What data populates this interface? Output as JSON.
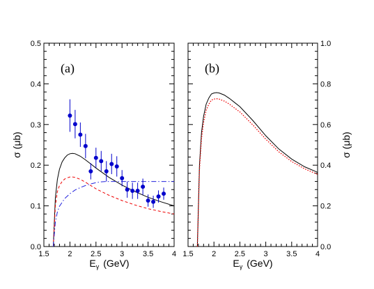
{
  "chart_data": [
    {
      "type": "line",
      "panel_label": "(a)",
      "xlabel": "E",
      "xlabel_sub": "γ",
      "xlabel_unit": "(GeV)",
      "ylabel": "σ   (μb)",
      "xlim": [
        1.5,
        4.0
      ],
      "ylim": [
        0.0,
        0.5
      ],
      "x_ticks": [
        "1.5",
        "2",
        "2.5",
        "3",
        "3.5",
        "4"
      ],
      "y_ticks": [
        "0.0",
        "0.1",
        "0.2",
        "0.3",
        "0.4",
        "0.5"
      ],
      "colors": {
        "solid": "#000000",
        "dashed": "#ee0000",
        "dashdot": "#2222dd",
        "data": "#0000cc"
      },
      "series": [
        {
          "style": "solid",
          "x": [
            1.68,
            1.72,
            1.76,
            1.8,
            1.85,
            1.9,
            1.95,
            2.0,
            2.05,
            2.1,
            2.2,
            2.3,
            2.4,
            2.5,
            2.75,
            3.0,
            3.25,
            3.5,
            3.75,
            4.0
          ],
          "y": [
            0.0,
            0.12,
            0.165,
            0.19,
            0.208,
            0.218,
            0.225,
            0.228,
            0.229,
            0.228,
            0.222,
            0.213,
            0.203,
            0.193,
            0.17,
            0.151,
            0.135,
            0.121,
            0.11,
            0.1
          ]
        },
        {
          "style": "dashed",
          "x": [
            1.68,
            1.72,
            1.76,
            1.8,
            1.85,
            1.9,
            1.95,
            2.0,
            2.05,
            2.1,
            2.2,
            2.3,
            2.4,
            2.5,
            2.75,
            3.0,
            3.25,
            3.5,
            3.75,
            4.0
          ],
          "y": [
            0.0,
            0.1,
            0.135,
            0.15,
            0.16,
            0.166,
            0.169,
            0.171,
            0.171,
            0.17,
            0.165,
            0.158,
            0.15,
            0.142,
            0.126,
            0.113,
            0.102,
            0.093,
            0.086,
            0.08
          ]
        },
        {
          "style": "dashdot",
          "x": [
            1.68,
            1.72,
            1.76,
            1.8,
            1.9,
            2.0,
            2.1,
            2.2,
            2.3,
            2.4,
            2.5,
            2.6,
            2.7,
            2.75,
            3.0,
            3.5,
            4.0
          ],
          "y": [
            0.0,
            0.06,
            0.085,
            0.099,
            0.118,
            0.13,
            0.139,
            0.145,
            0.15,
            0.154,
            0.157,
            0.159,
            0.16,
            0.16,
            0.16,
            0.16,
            0.16
          ]
        },
        {
          "style": "points",
          "x": [
            2.0,
            2.1,
            2.2,
            2.3,
            2.4,
            2.5,
            2.6,
            2.7,
            2.8,
            2.9,
            3.0,
            3.1,
            3.2,
            3.3,
            3.4,
            3.5,
            3.6,
            3.7,
            3.8
          ],
          "y": [
            0.322,
            0.301,
            0.275,
            0.247,
            0.185,
            0.218,
            0.21,
            0.185,
            0.203,
            0.197,
            0.168,
            0.14,
            0.137,
            0.137,
            0.147,
            0.113,
            0.11,
            0.123,
            0.13
          ],
          "err": [
            0.04,
            0.035,
            0.03,
            0.03,
            0.02,
            0.025,
            0.025,
            0.025,
            0.025,
            0.025,
            0.02,
            0.02,
            0.02,
            0.02,
            0.02,
            0.015,
            0.015,
            0.015,
            0.015
          ]
        }
      ]
    },
    {
      "type": "line",
      "panel_label": "(b)",
      "xlabel": "E",
      "xlabel_sub": "γ",
      "xlabel_unit": "(GeV)",
      "ylabel": "σ   (μb)",
      "xlim": [
        1.5,
        4.0
      ],
      "ylim": [
        0.0,
        1.0
      ],
      "x_ticks": [
        "1.5",
        "2",
        "2.5",
        "3",
        "3.5",
        "4"
      ],
      "y_ticks": [
        "0.0",
        "0.2",
        "0.4",
        "0.6",
        "0.8",
        "1.0"
      ],
      "colors": {
        "solid": "#000000",
        "dotted": "#ee0000"
      },
      "series": [
        {
          "style": "solid",
          "x": [
            1.68,
            1.72,
            1.76,
            1.8,
            1.85,
            1.9,
            1.95,
            2.0,
            2.05,
            2.1,
            2.2,
            2.3,
            2.4,
            2.5,
            2.75,
            3.0,
            3.25,
            3.5,
            3.75,
            4.0
          ],
          "y": [
            0.0,
            0.4,
            0.56,
            0.64,
            0.7,
            0.73,
            0.75,
            0.755,
            0.757,
            0.755,
            0.745,
            0.728,
            0.708,
            0.688,
            0.62,
            0.545,
            0.48,
            0.43,
            0.392,
            0.365
          ]
        },
        {
          "style": "dotted",
          "x": [
            1.68,
            1.72,
            1.76,
            1.8,
            1.85,
            1.9,
            1.95,
            2.0,
            2.05,
            2.1,
            2.2,
            2.3,
            2.4,
            2.5,
            2.75,
            3.0,
            3.25,
            3.5,
            3.75,
            4.0
          ],
          "y": [
            0.0,
            0.38,
            0.53,
            0.61,
            0.67,
            0.7,
            0.72,
            0.725,
            0.727,
            0.725,
            0.715,
            0.7,
            0.68,
            0.662,
            0.598,
            0.528,
            0.466,
            0.418,
            0.382,
            0.355
          ]
        }
      ]
    }
  ]
}
